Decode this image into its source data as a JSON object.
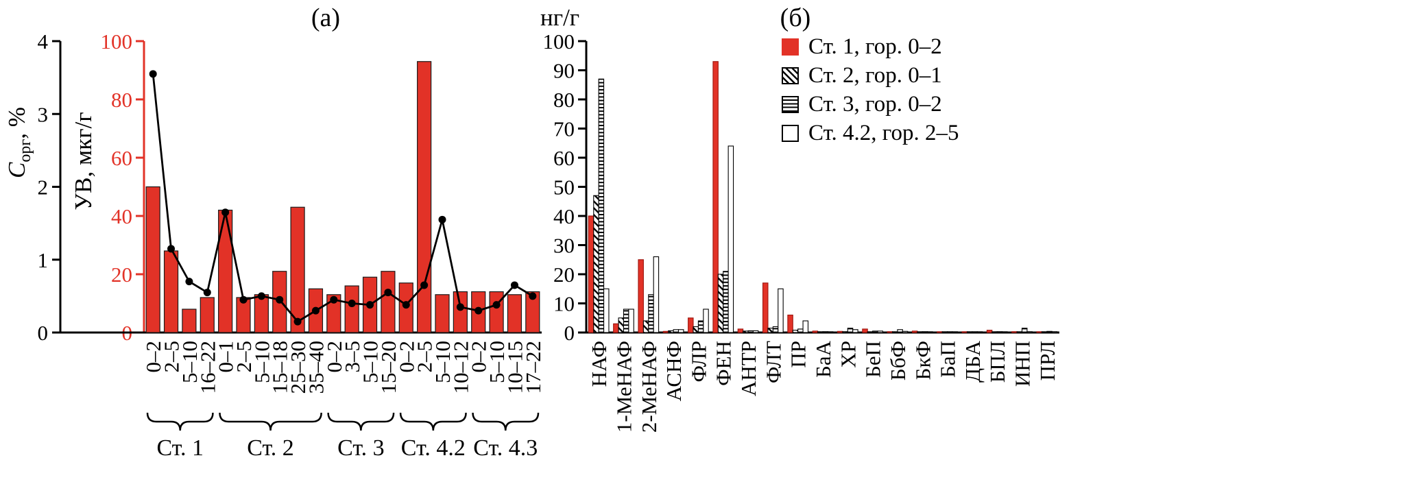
{
  "figure": {
    "background": "#ffffff",
    "accent_red": "#e23227"
  },
  "panel_a": {
    "title": "(а)",
    "y_left_label": {
      "symbol": "C",
      "subscript": "орг",
      "suffix": ", %"
    },
    "y_right_label": "УВ, мкг/г"
  },
  "panel_b": {
    "title": "(б)",
    "y_label": "нг/г"
  },
  "chart_data": [
    {
      "type": "bar",
      "panel": "(а)",
      "subtype": "bars-with-line-overlay",
      "y_left_axis": {
        "label": "Cорг, %",
        "min": 0,
        "max": 4,
        "ticks": [
          0,
          1,
          2,
          3,
          4
        ],
        "color": "#000000",
        "maps_to": "line"
      },
      "y_right_axis": {
        "label": "УВ, мкг/г",
        "min": 0,
        "max": 100,
        "ticks": [
          0,
          20,
          40,
          60,
          80,
          100
        ],
        "color": "#e23227",
        "maps_to": "bars"
      },
      "categories": [
        "0–2",
        "2–5",
        "5–10",
        "16–22",
        "0–1",
        "2–5",
        "5–10",
        "15–18",
        "25–30",
        "35–40",
        "0–2",
        "3–5",
        "5–10",
        "15–20",
        "0–2",
        "2–5",
        "5–10",
        "10–12",
        "0–2",
        "5–10",
        "10–15",
        "17–22"
      ],
      "station_groups": [
        {
          "label": "Ст. 1",
          "count": 4
        },
        {
          "label": "Ст. 2",
          "count": 6
        },
        {
          "label": "Ст. 3",
          "count": 4
        },
        {
          "label": "Ст. 4.2",
          "count": 4
        },
        {
          "label": "Ст. 4.3",
          "count": 4
        }
      ],
      "bars_uv_mkg_g": [
        50,
        28,
        8,
        12,
        42,
        12,
        13,
        21,
        43,
        15,
        13,
        16,
        19,
        21,
        17,
        93,
        13,
        14,
        14,
        14,
        13,
        14
      ],
      "line_corg_pct": [
        3.55,
        1.15,
        0.7,
        0.55,
        1.65,
        0.45,
        0.5,
        0.45,
        0.15,
        0.3,
        0.45,
        0.4,
        0.38,
        0.55,
        0.38,
        0.65,
        1.55,
        0.35,
        0.3,
        0.38,
        0.65,
        0.5
      ]
    },
    {
      "type": "bar",
      "panel": "(б)",
      "subtype": "grouped-bars",
      "y_axis": {
        "label": "нг/г",
        "min": 0,
        "max": 100,
        "ticks": [
          0,
          10,
          20,
          30,
          40,
          50,
          60,
          70,
          80,
          90,
          100
        ]
      },
      "categories": [
        "НАФ",
        "1-МеНАФ",
        "2-МеНАФ",
        "АСНФ",
        "ФЛР",
        "ФЕН",
        "АНТР",
        "ФЛТ",
        "ПР",
        "БаА",
        "ХР",
        "БеП",
        "БбФ",
        "БкФ",
        "БаП",
        "ДБА",
        "БПЛ",
        "ИНП",
        "ПРЛ"
      ],
      "series": [
        {
          "name": "Ст. 1, гор. 0–2",
          "style": "solid-red",
          "color": "#e23227",
          "values": [
            40,
            3,
            25,
            0.4,
            5,
            93,
            1.2,
            17,
            6,
            0.5,
            0.4,
            1.2,
            0.3,
            0.5,
            0.2,
            0.2,
            0.8,
            0.3,
            0.2
          ]
        },
        {
          "name": "Ст. 2, гор. 0–1",
          "style": "diagonal-hatch",
          "values": [
            47,
            5,
            4,
            0.6,
            2,
            20,
            0.5,
            1.5,
            0.8,
            0.2,
            0.3,
            0.2,
            0.2,
            0.1,
            0.1,
            0.1,
            0.2,
            0.2,
            0.1
          ]
        },
        {
          "name": "Ст. 3, гор. 0–2",
          "style": "horizontal-hatch",
          "values": [
            87,
            8,
            13,
            1,
            4,
            21,
            0.6,
            2,
            1.2,
            0.3,
            1.5,
            0.5,
            1,
            0.3,
            0.2,
            0.1,
            0.3,
            1.5,
            0.4
          ]
        },
        {
          "name": "Ст. 4.2, гор. 2–5",
          "style": "open",
          "values": [
            15,
            8,
            26,
            1,
            8,
            64,
            0.6,
            15,
            4,
            0.2,
            1,
            0.5,
            0.4,
            0.2,
            0.1,
            0.1,
            0.2,
            0.3,
            0.3
          ]
        }
      ],
      "legend_position": "top-right",
      "grid": false
    }
  ]
}
